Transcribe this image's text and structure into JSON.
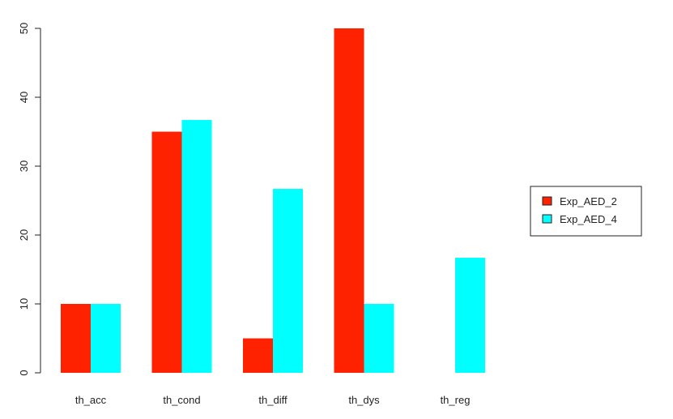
{
  "chart_data": {
    "type": "bar",
    "title": "",
    "xlabel": "",
    "ylabel": "",
    "categories": [
      "th_acc",
      "th_cond",
      "th_diff",
      "th_dys",
      "th_reg"
    ],
    "series": [
      {
        "name": "Exp_AED_2",
        "values": [
          10,
          35,
          5,
          50,
          0
        ],
        "color": "#ff2200"
      },
      {
        "name": "Exp_AED_4",
        "values": [
          10,
          36.7,
          26.7,
          10,
          16.7
        ],
        "color": "#00ffff"
      }
    ],
    "ylim": [
      0,
      50
    ],
    "yticks": [
      "0",
      "10",
      "20",
      "30",
      "40",
      "50"
    ],
    "grid": false,
    "legend_position": "right"
  }
}
